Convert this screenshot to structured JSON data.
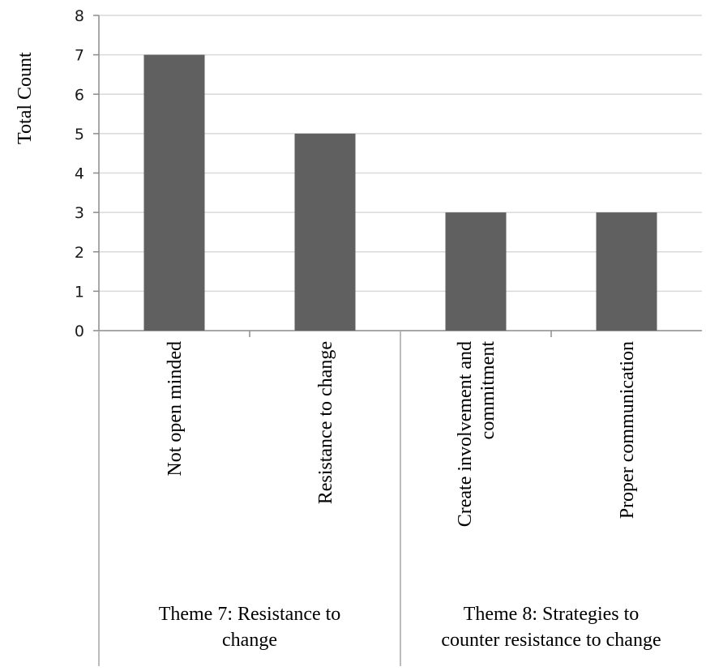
{
  "chart_data": {
    "type": "bar",
    "ylabel": "Total Count",
    "ylim": [
      0,
      8
    ],
    "yticks": [
      "0",
      "1",
      "2",
      "3",
      "4",
      "5",
      "6",
      "7",
      "8"
    ],
    "grid": true,
    "bar_color": "#606060",
    "gridline_color": "#d9d9d9",
    "categories": [
      {
        "lines": [
          "Not open minded"
        ]
      },
      {
        "lines": [
          "Resistance to change"
        ]
      },
      {
        "lines": [
          "Create involvement and",
          "commitment"
        ]
      },
      {
        "lines": [
          "Proper communication"
        ]
      }
    ],
    "values": [
      7,
      5,
      3,
      3
    ],
    "groups": [
      {
        "lines": [
          "Theme 7: Resistance to",
          "change"
        ],
        "span": [
          0,
          1
        ]
      },
      {
        "lines": [
          "Theme 8: Strategies to",
          "counter resistance to change"
        ],
        "span": [
          2,
          3
        ]
      }
    ]
  }
}
